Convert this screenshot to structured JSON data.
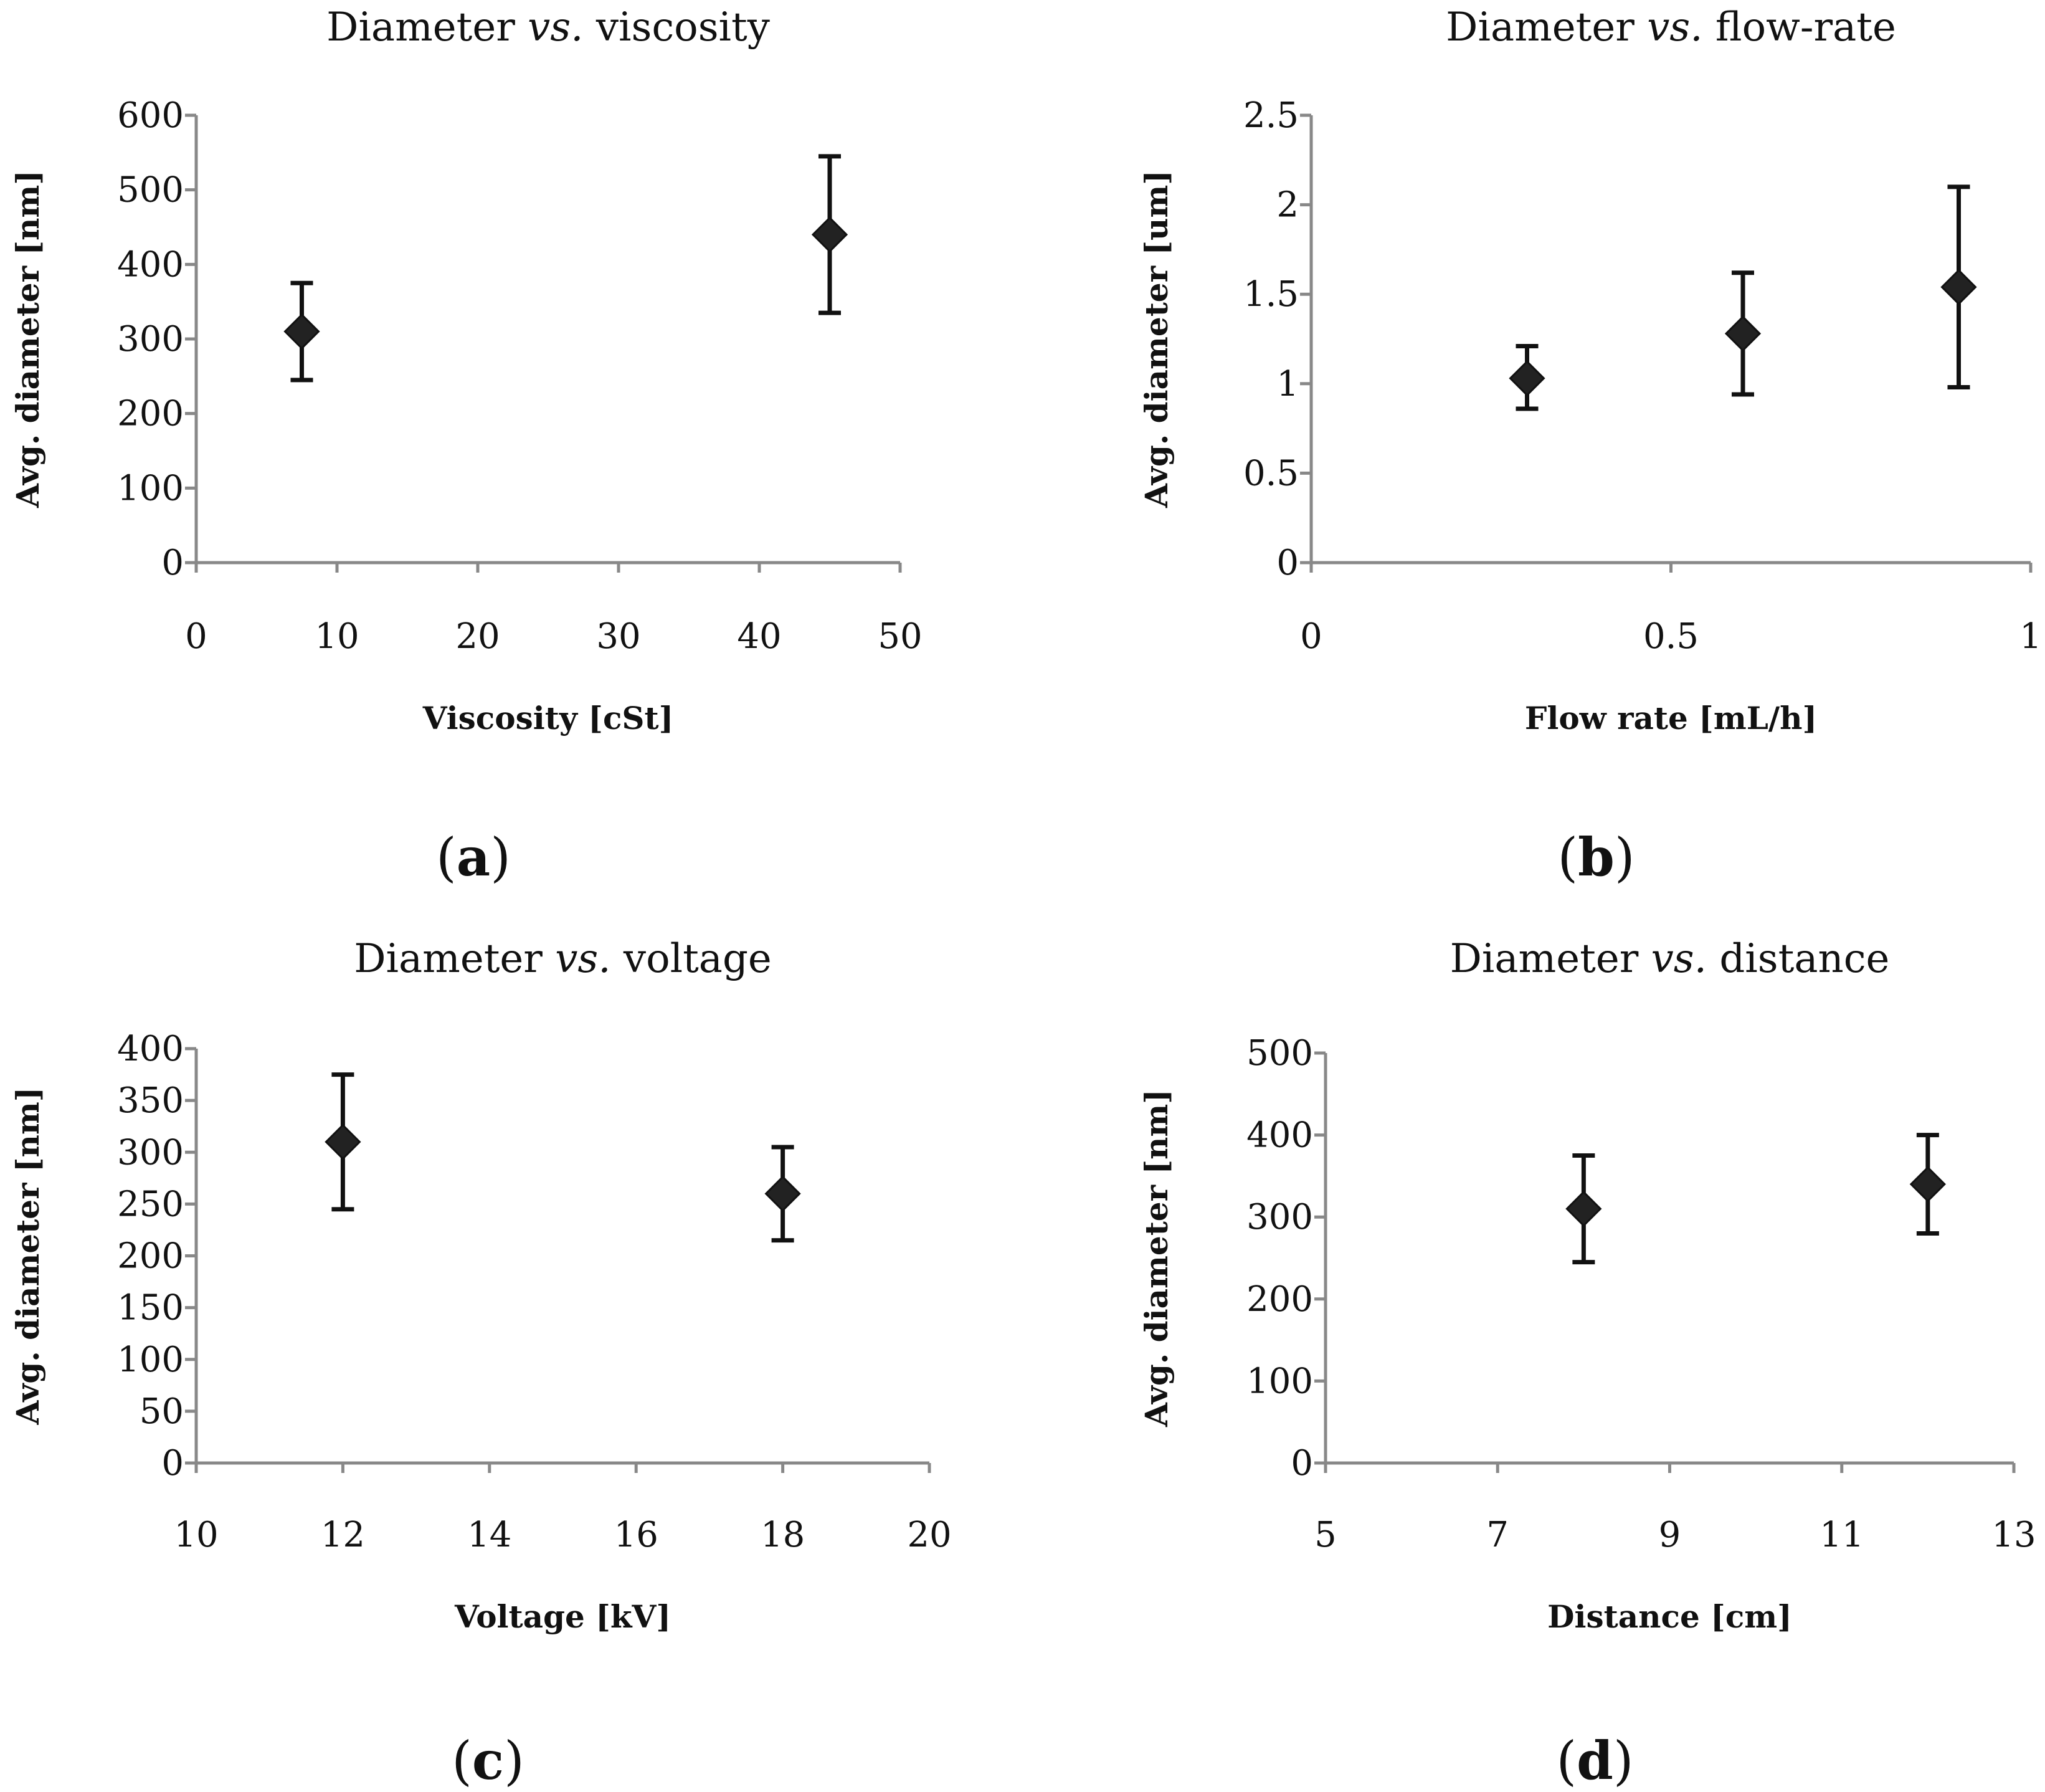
{
  "chart_data": [
    {
      "type": "scatter",
      "panel_label": "a",
      "title": {
        "prefix": "Diameter ",
        "emph": "vs.",
        "suffix": " viscosity"
      },
      "xlabel": "Viscosity [cSt]",
      "ylabel": "Avg. diameter [nm]",
      "xlim": [
        0,
        50
      ],
      "ylim": [
        0,
        600
      ],
      "xticks": [
        0,
        10,
        20,
        30,
        40,
        50
      ],
      "xtick_labels": [
        "0",
        "10",
        "20",
        "30",
        "40",
        "50"
      ],
      "yticks": [
        0,
        100,
        200,
        300,
        400,
        500,
        600
      ],
      "ytick_labels": [
        "0",
        "100",
        "200",
        "300",
        "400",
        "500",
        "600"
      ],
      "points": [
        {
          "x": 7.5,
          "y": 310,
          "err_low": 245,
          "err_high": 375
        },
        {
          "x": 45,
          "y": 440,
          "err_low": 335,
          "err_high": 545
        }
      ]
    },
    {
      "type": "scatter",
      "panel_label": "b",
      "title": {
        "prefix": "Diameter ",
        "emph": "vs.",
        "suffix": " flow-rate"
      },
      "xlabel": "Flow rate [mL/h]",
      "ylabel": "Avg. diameter [um]",
      "xlim": [
        0,
        1
      ],
      "ylim": [
        0,
        2.5
      ],
      "xticks": [
        0,
        0.5,
        1
      ],
      "xtick_labels": [
        "0",
        "0.5",
        "1"
      ],
      "yticks": [
        0,
        0.5,
        1,
        1.5,
        2,
        2.5
      ],
      "ytick_labels": [
        "0",
        "0.5",
        "1",
        "1.5",
        "2",
        "2.5"
      ],
      "points": [
        {
          "x": 0.3,
          "y": 1.03,
          "err_low": 0.86,
          "err_high": 1.21
        },
        {
          "x": 0.6,
          "y": 1.28,
          "err_low": 0.94,
          "err_high": 1.62
        },
        {
          "x": 0.9,
          "y": 1.54,
          "err_low": 0.98,
          "err_high": 2.1
        }
      ]
    },
    {
      "type": "scatter",
      "panel_label": "c",
      "title": {
        "prefix": "Diameter ",
        "emph": "vs.",
        "suffix": " voltage"
      },
      "xlabel": "Voltage [kV]",
      "ylabel": "Avg. diameter [nm]",
      "xlim": [
        10,
        20
      ],
      "ylim": [
        0,
        400
      ],
      "xticks": [
        10,
        12,
        14,
        16,
        18,
        20
      ],
      "xtick_labels": [
        "10",
        "12",
        "14",
        "16",
        "18",
        "20"
      ],
      "yticks": [
        0,
        50,
        100,
        150,
        200,
        250,
        300,
        350,
        400
      ],
      "ytick_labels": [
        "0",
        "50",
        "100",
        "150",
        "200",
        "250",
        "300",
        "350",
        "400"
      ],
      "points": [
        {
          "x": 12,
          "y": 310,
          "err_low": 245,
          "err_high": 375
        },
        {
          "x": 18,
          "y": 260,
          "err_low": 215,
          "err_high": 305
        }
      ]
    },
    {
      "type": "scatter",
      "panel_label": "d",
      "title": {
        "prefix": "Diameter ",
        "emph": "vs.",
        "suffix": " distance"
      },
      "xlabel": "Distance [cm]",
      "ylabel": "Avg. diameter [nm]",
      "xlim": [
        5,
        13
      ],
      "ylim": [
        0,
        500
      ],
      "xticks": [
        5,
        7,
        9,
        11,
        13
      ],
      "xtick_labels": [
        "5",
        "7",
        "9",
        "11",
        "13"
      ],
      "yticks": [
        0,
        100,
        200,
        300,
        400,
        500
      ],
      "ytick_labels": [
        "0",
        "100",
        "200",
        "300",
        "400",
        "500"
      ],
      "points": [
        {
          "x": 8,
          "y": 310,
          "err_low": 245,
          "err_high": 375
        },
        {
          "x": 12,
          "y": 340,
          "err_low": 280,
          "err_high": 400
        }
      ]
    }
  ],
  "colors": {
    "marker": "#222222",
    "axis": "#888888",
    "text": "#111111"
  }
}
